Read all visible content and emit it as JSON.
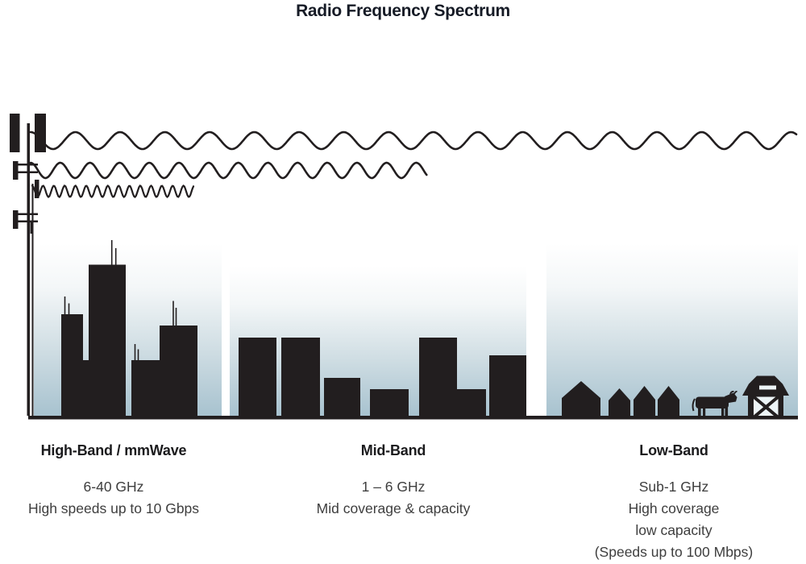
{
  "title": "Radio Frequency Spectrum",
  "bands": [
    {
      "id": "high-band",
      "name": "High-Band / mmWave",
      "frequency": "6-40 GHz",
      "details": [
        "High speeds up to 10 Gbps"
      ],
      "scene_icons": [
        "cell-tower-icon",
        "skyscrapers-icon",
        "short-wavelength-wave-icon"
      ]
    },
    {
      "id": "mid-band",
      "name": "Mid-Band",
      "frequency": "1 – 6 GHz",
      "details": [
        "Mid coverage & capacity"
      ],
      "scene_icons": [
        "mid-rise-buildings-icon",
        "medium-wavelength-wave-icon"
      ]
    },
    {
      "id": "low-band",
      "name": "Low-Band",
      "frequency": "Sub-1 GHz",
      "details": [
        "High coverage",
        "low capacity",
        "(Speeds up to 100 Mbps)"
      ],
      "scene_icons": [
        "houses-icon",
        "cow-icon",
        "barn-icon",
        "long-wavelength-wave-icon"
      ]
    }
  ],
  "colors": {
    "ink": "#221e1f",
    "title_text": "#161b26",
    "body_text": "#3e3e3e",
    "sky_top": "#ffffff",
    "sky_bottom": "#a7c2cf",
    "background": "#ffffff"
  }
}
